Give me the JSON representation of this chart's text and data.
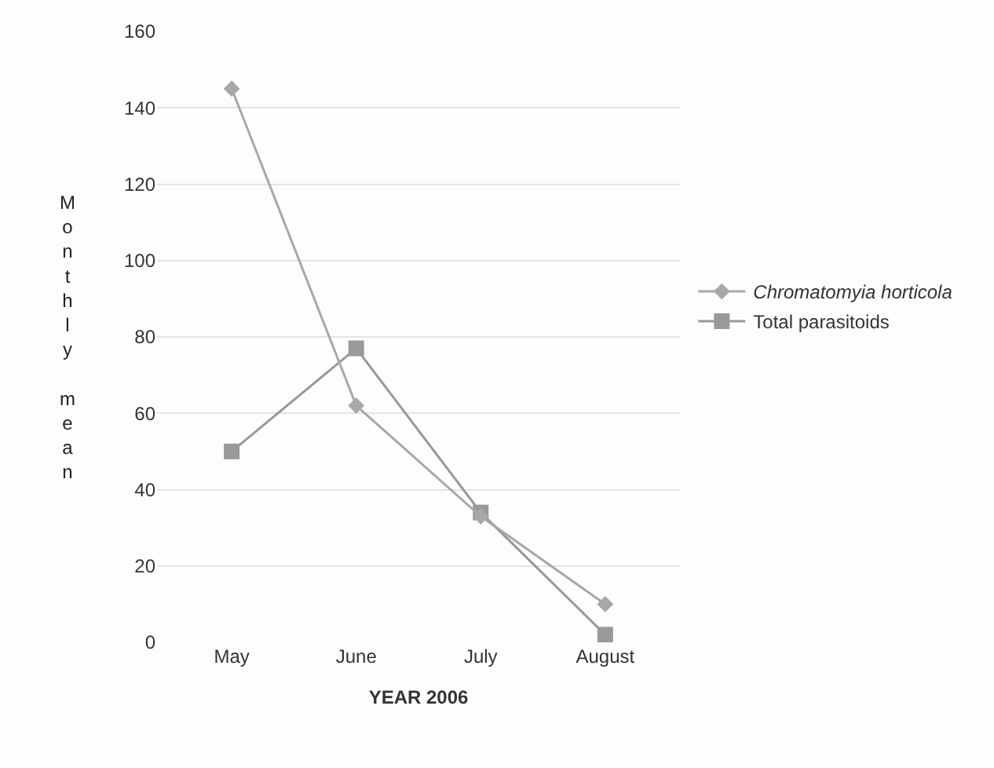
{
  "chart_data": {
    "type": "line",
    "xlabel": "YEAR 2006",
    "ylabel": "Monthly mean",
    "categories": [
      "May",
      "June",
      "July",
      "August"
    ],
    "series": [
      {
        "name": "Chromatomyia horticola",
        "color": "#a8a8a8",
        "marker": "diamond",
        "values": [
          145,
          62,
          33,
          10
        ]
      },
      {
        "name": "Total parasitoids",
        "color": "#999999",
        "marker": "square",
        "values": [
          50,
          77,
          34,
          2
        ]
      }
    ],
    "ylim": [
      0,
      160
    ],
    "yticks": [
      0,
      20,
      40,
      60,
      80,
      100,
      120,
      140,
      160
    ],
    "grid": "y",
    "legend": "right"
  }
}
